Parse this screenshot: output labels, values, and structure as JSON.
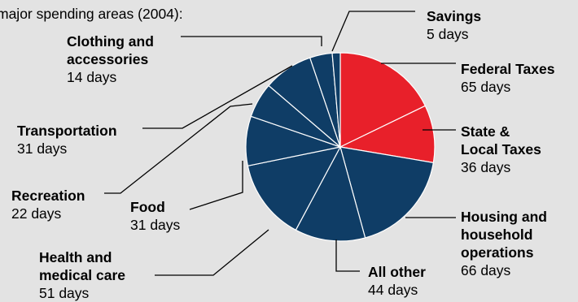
{
  "chart_data": {
    "type": "pie",
    "title": "major spending areas (2004):",
    "unit": "days",
    "slices": [
      {
        "name": "Federal Taxes",
        "value": 65,
        "value_label": "65 days",
        "color": "#e8202a"
      },
      {
        "name": "State & Local Taxes",
        "value": 36,
        "value_label": "36 days",
        "color": "#e8202a"
      },
      {
        "name": "Housing and household operations",
        "value": 66,
        "value_label": "66 days",
        "color": "#0f3d66"
      },
      {
        "name": "All other",
        "value": 44,
        "value_label": "44 days",
        "color": "#0f3d66"
      },
      {
        "name": "Health and medical care",
        "value": 51,
        "value_label": "51 days",
        "color": "#0f3d66"
      },
      {
        "name": "Food",
        "value": 31,
        "value_label": "31 days",
        "color": "#0f3d66"
      },
      {
        "name": "Recreation",
        "value": 22,
        "value_label": "22 days",
        "color": "#0f3d66"
      },
      {
        "name": "Transportation",
        "value": 31,
        "value_label": "31 days",
        "color": "#0f3d66"
      },
      {
        "name": "Clothing and accessories",
        "value": 14,
        "value_label": "14 days",
        "color": "#0f3d66"
      },
      {
        "name": "Savings",
        "value": 5,
        "value_label": "5 days",
        "color": "#0f3d66"
      }
    ],
    "labels": {
      "federal": {
        "line1": "Federal Taxes",
        "days": "65 days"
      },
      "state": {
        "line1": "State &",
        "line2": "Local Taxes",
        "days": "36 days"
      },
      "housing": {
        "line1": "Housing and",
        "line2": "household",
        "line3": "operations",
        "days": "66 days"
      },
      "allother": {
        "line1": "All other",
        "days": "44 days"
      },
      "health": {
        "line1": "Health and",
        "line2": "medical care",
        "days": "51 days"
      },
      "food": {
        "line1": "Food",
        "days": "31 days"
      },
      "recreation": {
        "line1": "Recreation",
        "days": "22 days"
      },
      "transportation": {
        "line1": "Transportation",
        "days": "31 days"
      },
      "clothing": {
        "line1": "Clothing and",
        "line2": "accessories",
        "days": "14 days"
      },
      "savings": {
        "line1": "Savings",
        "days": "5 days"
      }
    }
  }
}
